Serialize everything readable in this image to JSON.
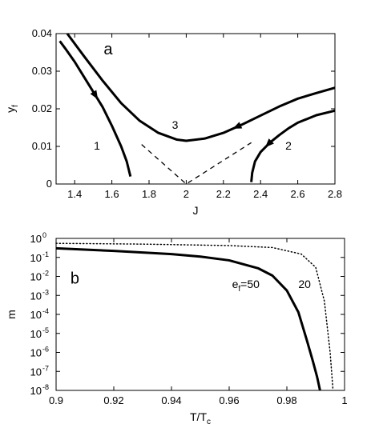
{
  "chart_data": [
    {
      "panel": "a",
      "type": "line",
      "xlabel": "J",
      "ylabel": "y",
      "ylabel_subscript": "f",
      "xlim": [
        1.3,
        2.8
      ],
      "ylim": [
        0,
        0.04
      ],
      "xticks": [
        1.4,
        1.6,
        1.8,
        2,
        2.2,
        2.4,
        2.6,
        2.8
      ],
      "xtick_labels": [
        "1.4",
        "1.6",
        "1.8",
        "2",
        "2.2",
        "2.4",
        "2.6",
        "2.8"
      ],
      "yticks": [
        0,
        0.01,
        0.02,
        0.03,
        0.04
      ],
      "ytick_labels": [
        "0",
        "0.01",
        "0.02",
        "0.03",
        "0.04"
      ],
      "series": [
        {
          "name": "1",
          "style": "solid",
          "arrow": "up",
          "x": [
            1.7,
            1.68,
            1.65,
            1.6,
            1.55,
            1.5,
            1.45,
            1.4,
            1.35,
            1.32
          ],
          "y": [
            0.002,
            0.006,
            0.01,
            0.0155,
            0.0205,
            0.0245,
            0.0285,
            0.0325,
            0.036,
            0.038
          ]
        },
        {
          "name": "2",
          "style": "solid",
          "arrow": "toward-lower-left",
          "x": [
            2.35,
            2.355,
            2.37,
            2.4,
            2.45,
            2.5,
            2.55,
            2.6,
            2.7,
            2.8
          ],
          "y": [
            0.0005,
            0.003,
            0.006,
            0.0085,
            0.011,
            0.013,
            0.0148,
            0.0163,
            0.0183,
            0.0195
          ]
        },
        {
          "name": "3",
          "style": "solid",
          "arrow": "left",
          "x": [
            1.36,
            1.45,
            1.55,
            1.65,
            1.75,
            1.85,
            1.95,
            2.0,
            2.1,
            2.2,
            2.3,
            2.4,
            2.5,
            2.6,
            2.7,
            2.8
          ],
          "y": [
            0.04,
            0.034,
            0.0275,
            0.0215,
            0.0168,
            0.0136,
            0.0118,
            0.0115,
            0.0121,
            0.0136,
            0.0158,
            0.0182,
            0.0206,
            0.0227,
            0.0242,
            0.0256
          ]
        },
        {
          "name": "",
          "style": "dashed",
          "x": [
            1.76,
            2.0,
            2.35
          ],
          "y": [
            0.0105,
            0.0,
            0.011
          ]
        }
      ],
      "annotations": [
        {
          "text": "a",
          "x": 1.58,
          "y": 0.0345
        },
        {
          "text": "1",
          "x": 1.52,
          "y": 0.0092
        },
        {
          "text": "2",
          "x": 2.55,
          "y": 0.0092
        },
        {
          "text": "3",
          "x": 1.94,
          "y": 0.0147
        }
      ]
    },
    {
      "panel": "b",
      "type": "line",
      "xlabel": "T/T",
      "xlabel_subscript": "c",
      "ylabel": "m",
      "yscale": "log",
      "xlim": [
        0.9,
        1.0
      ],
      "ylim": [
        1e-08,
        1
      ],
      "xticks": [
        0.9,
        0.92,
        0.94,
        0.96,
        0.98,
        1.0
      ],
      "xtick_labels": [
        "0.9",
        "0.92",
        "0.94",
        "0.96",
        "0.98",
        "1"
      ],
      "yticks": [
        0,
        -1,
        -2,
        -3,
        -4,
        -5,
        -6,
        -7,
        -8
      ],
      "series": [
        {
          "name": "e_f=50",
          "style": "solid",
          "x": [
            0.9,
            0.92,
            0.94,
            0.95,
            0.96,
            0.97,
            0.975,
            0.98,
            0.984,
            0.987,
            0.989,
            0.9905,
            0.9915
          ],
          "y": [
            0.3,
            0.22,
            0.15,
            0.11,
            0.07,
            0.027,
            0.011,
            0.0018,
            0.00013,
            4e-06,
            3.5e-07,
            5e-08,
            1e-08
          ]
        },
        {
          "name": "20",
          "style": "dotted",
          "x": [
            0.9,
            0.93,
            0.96,
            0.975,
            0.985,
            0.99,
            0.993,
            0.995,
            0.996
          ],
          "y": [
            0.55,
            0.5,
            0.42,
            0.33,
            0.15,
            0.03,
            0.0005,
            1e-06,
            1e-08
          ]
        }
      ],
      "annotations": [
        {
          "text": "b",
          "x": 0.9065,
          "y": 0.0042
        },
        {
          "text": "e",
          "subscript": "f",
          "tail": "=50",
          "x": 0.961,
          "y": 0.0025
        },
        {
          "text": "20",
          "x": 0.984,
          "y": 0.0025
        }
      ]
    }
  ]
}
